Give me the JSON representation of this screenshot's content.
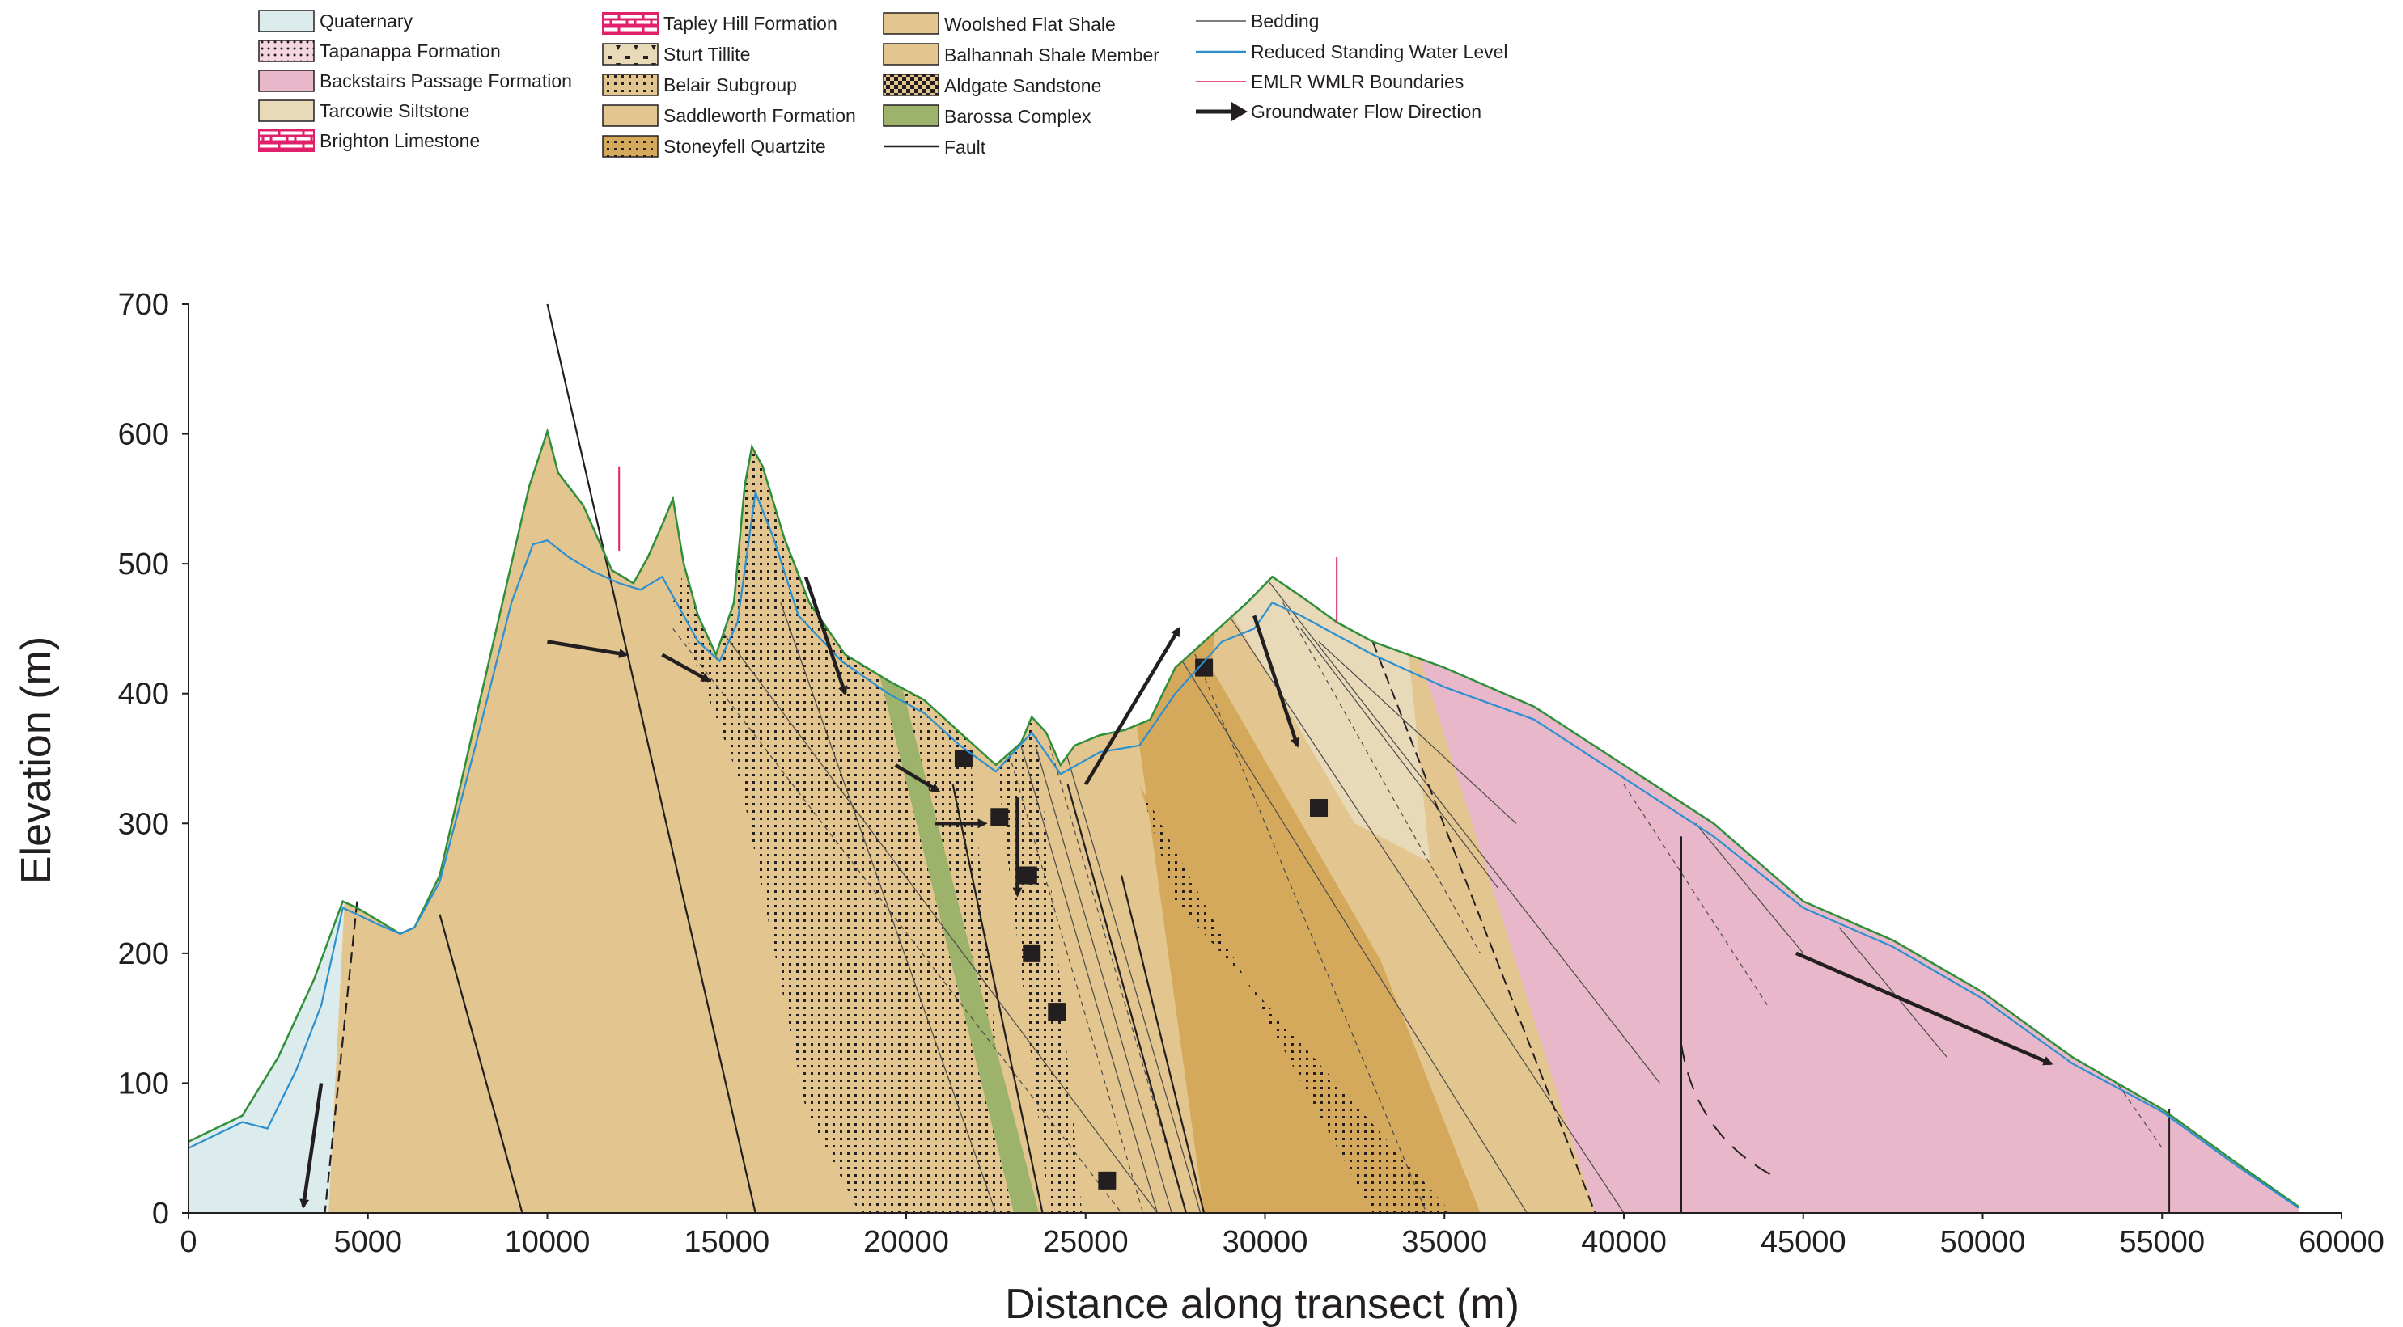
{
  "legend": {
    "col1": [
      {
        "label": "Quaternary",
        "swatch": "quaternary"
      },
      {
        "label": "Tapanappa Formation",
        "swatch": "tapanappa"
      },
      {
        "label": "Backstairs Passage Formation",
        "swatch": "backstairs"
      },
      {
        "label": "Tarcowie Siltstone",
        "swatch": "tarcowie"
      },
      {
        "label": "Brighton Limestone",
        "swatch": "brighton"
      }
    ],
    "col2": [
      {
        "label": "Tapley Hill Formation",
        "swatch": "tapley"
      },
      {
        "label": "Sturt Tillite",
        "swatch": "sturt"
      },
      {
        "label": "Belair Subgroup",
        "swatch": "belair"
      },
      {
        "label": "Saddleworth Formation",
        "swatch": "saddleworth"
      },
      {
        "label": "Stoneyfell Quartzite",
        "swatch": "stoneyfell"
      }
    ],
    "col3": [
      {
        "label": "Woolshed Flat Shale",
        "swatch": "woolshed"
      },
      {
        "label": "Balhannah Shale Member",
        "swatch": "balhannah"
      },
      {
        "label": "Aldgate Sandstone",
        "swatch": "aldgate"
      },
      {
        "label": "Barossa Complex",
        "swatch": "barossa"
      },
      {
        "label": "Fault",
        "swatch": "fault-line"
      }
    ],
    "col4": [
      {
        "label": "Bedding",
        "swatch": "bedding-line"
      },
      {
        "label": "Reduced Standing Water Level",
        "swatch": "water-line"
      },
      {
        "label": "EMLR WMLR Boundaries",
        "swatch": "boundary-line"
      },
      {
        "label": "Groundwater Flow Direction",
        "swatch": "flow-arrow"
      }
    ]
  },
  "colors": {
    "quaternary": "#dcecec",
    "backstairs": "#e8b7c9",
    "tarcowie": "#e8d9b8",
    "saddleworth": "#e3c68f",
    "stoneyfell": "#d4a95c",
    "barossa": "#9db36b",
    "surface": "#2f8f3a",
    "water": "#2b8fd0",
    "boundary": "#e0206a",
    "brighton": "#e0206a",
    "ink": "#231f20"
  },
  "chart_data": {
    "type": "cross-section",
    "xlabel": "Distance along transect (m)",
    "ylabel": "Elevation (m)",
    "xlim": [
      0,
      60000
    ],
    "ylim": [
      0,
      700
    ],
    "xticks": [
      "0",
      "5000",
      "10000",
      "15000",
      "20000",
      "25000",
      "30000",
      "35000",
      "40000",
      "45000",
      "50000",
      "55000",
      "60000"
    ],
    "yticks": [
      "0",
      "100",
      "200",
      "300",
      "400",
      "500",
      "600",
      "700"
    ],
    "ground_surface": [
      [
        0,
        55
      ],
      [
        1500,
        75
      ],
      [
        2500,
        120
      ],
      [
        3500,
        180
      ],
      [
        4300,
        240
      ],
      [
        4700,
        235
      ],
      [
        5300,
        225
      ],
      [
        5900,
        215
      ],
      [
        6300,
        220
      ],
      [
        7000,
        260
      ],
      [
        8000,
        380
      ],
      [
        9000,
        500
      ],
      [
        9500,
        560
      ],
      [
        10000,
        602
      ],
      [
        10300,
        570
      ],
      [
        11000,
        545
      ],
      [
        11800,
        495
      ],
      [
        12400,
        485
      ],
      [
        12800,
        505
      ],
      [
        13200,
        530
      ],
      [
        13500,
        550
      ],
      [
        13800,
        500
      ],
      [
        14200,
        460
      ],
      [
        14700,
        430
      ],
      [
        15200,
        470
      ],
      [
        15500,
        560
      ],
      [
        15700,
        590
      ],
      [
        16000,
        575
      ],
      [
        16600,
        520
      ],
      [
        17300,
        470
      ],
      [
        18300,
        430
      ],
      [
        19500,
        410
      ],
      [
        20500,
        395
      ],
      [
        21500,
        370
      ],
      [
        22500,
        345
      ],
      [
        23200,
        362
      ],
      [
        23500,
        382
      ],
      [
        23900,
        370
      ],
      [
        24300,
        345
      ],
      [
        24700,
        360
      ],
      [
        25400,
        368
      ],
      [
        26100,
        372
      ],
      [
        26800,
        380
      ],
      [
        27500,
        420
      ],
      [
        28500,
        445
      ],
      [
        29500,
        470
      ],
      [
        30200,
        490
      ],
      [
        31000,
        475
      ],
      [
        32000,
        455
      ],
      [
        33000,
        440
      ],
      [
        35000,
        420
      ],
      [
        37500,
        390
      ],
      [
        40000,
        345
      ],
      [
        42500,
        300
      ],
      [
        45000,
        240
      ],
      [
        47500,
        210
      ],
      [
        50000,
        170
      ],
      [
        52500,
        120
      ],
      [
        55000,
        80
      ],
      [
        57000,
        40
      ],
      [
        58800,
        5
      ]
    ],
    "water_level": [
      [
        0,
        50
      ],
      [
        1500,
        70
      ],
      [
        2200,
        65
      ],
      [
        3000,
        110
      ],
      [
        3700,
        160
      ],
      [
        4300,
        235
      ],
      [
        4700,
        230
      ],
      [
        5300,
        222
      ],
      [
        5900,
        215
      ],
      [
        6300,
        220
      ],
      [
        7000,
        255
      ],
      [
        8000,
        360
      ],
      [
        9000,
        470
      ],
      [
        9600,
        515
      ],
      [
        10000,
        518
      ],
      [
        10600,
        505
      ],
      [
        11200,
        495
      ],
      [
        12000,
        485
      ],
      [
        12600,
        480
      ],
      [
        13200,
        490
      ],
      [
        13600,
        470
      ],
      [
        14200,
        440
      ],
      [
        14800,
        425
      ],
      [
        15300,
        455
      ],
      [
        15800,
        555
      ],
      [
        16300,
        520
      ],
      [
        17000,
        460
      ],
      [
        18200,
        425
      ],
      [
        19500,
        400
      ],
      [
        20500,
        385
      ],
      [
        21500,
        360
      ],
      [
        22500,
        340
      ],
      [
        23500,
        370
      ],
      [
        24300,
        338
      ],
      [
        25400,
        355
      ],
      [
        26500,
        360
      ],
      [
        27500,
        400
      ],
      [
        28800,
        440
      ],
      [
        29700,
        450
      ],
      [
        30200,
        470
      ],
      [
        31000,
        460
      ],
      [
        32000,
        445
      ],
      [
        33000,
        430
      ],
      [
        35000,
        405
      ],
      [
        37500,
        380
      ],
      [
        40000,
        335
      ],
      [
        42500,
        290
      ],
      [
        45000,
        235
      ],
      [
        47500,
        205
      ],
      [
        50000,
        165
      ],
      [
        52500,
        115
      ],
      [
        55000,
        78
      ],
      [
        57000,
        38
      ],
      [
        58800,
        4
      ]
    ],
    "flow_arrows": [
      [
        [
          3700,
          100
        ],
        [
          3200,
          5
        ]
      ],
      [
        [
          10000,
          440
        ],
        [
          12200,
          430
        ]
      ],
      [
        [
          13200,
          430
        ],
        [
          14500,
          410
        ]
      ],
      [
        [
          17200,
          490
        ],
        [
          18300,
          400
        ]
      ],
      [
        [
          19700,
          345
        ],
        [
          20900,
          325
        ]
      ],
      [
        [
          20800,
          300
        ],
        [
          22200,
          300
        ]
      ],
      [
        [
          23100,
          320
        ],
        [
          23100,
          245
        ]
      ],
      [
        [
          25000,
          330
        ],
        [
          27600,
          450
        ]
      ],
      [
        [
          29700,
          460
        ],
        [
          30900,
          360
        ]
      ],
      [
        [
          44800,
          200
        ],
        [
          51900,
          115
        ]
      ]
    ],
    "boundaries_x": [
      12000,
      32000
    ]
  },
  "labels": {
    "xlabel": "Distance along transect (m)",
    "ylabel": "Elevation (m)"
  }
}
